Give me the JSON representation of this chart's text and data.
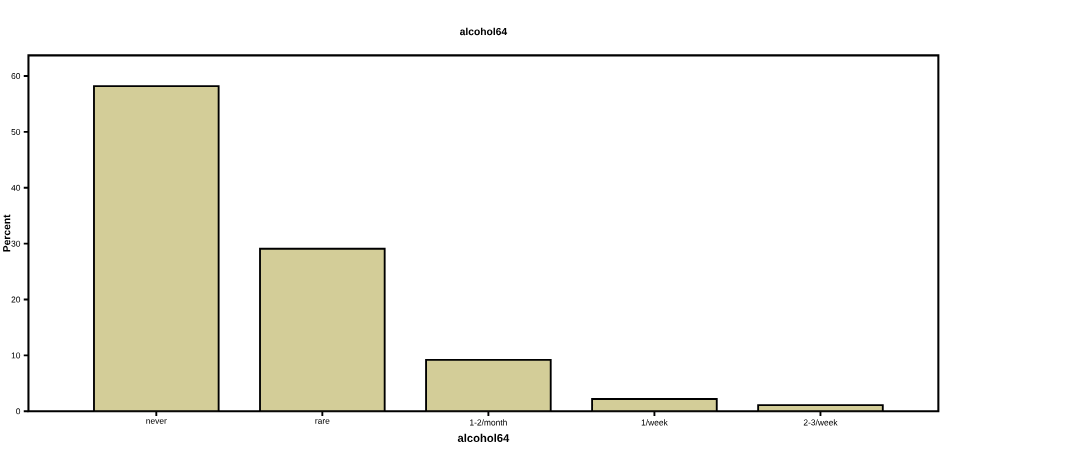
{
  "chart_data": {
    "type": "bar",
    "title": "alcohol64",
    "xlabel": "alcohol64",
    "ylabel": "Percent",
    "categories": [
      "never",
      "rare",
      "1-2/month",
      "1/week",
      "2-3/week"
    ],
    "values": [
      58.2,
      29.1,
      9.2,
      2.2,
      1.1
    ],
    "color": "#d3cd98",
    "ylim": [
      0,
      63.7
    ],
    "yticks": [
      0,
      10,
      20,
      30,
      40,
      50,
      60
    ]
  }
}
